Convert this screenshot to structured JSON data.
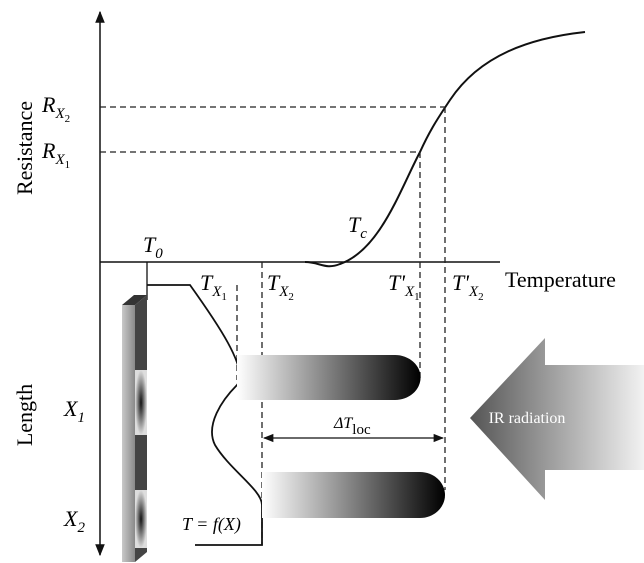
{
  "axes": {
    "resistance": "Resistance",
    "length": "Length",
    "temperature": "Temperature"
  },
  "labels": {
    "r_x2": {
      "base": "R",
      "sub": "X",
      "sub2": "2"
    },
    "r_x1": {
      "base": "R",
      "sub": "X",
      "sub2": "1"
    },
    "t_0": {
      "base": "T",
      "sub": "0"
    },
    "t_x1": {
      "base": "T",
      "sub": "X",
      "sub2": "1"
    },
    "t_x2": {
      "base": "T",
      "sub": "X",
      "sub2": "2"
    },
    "t_x1_prime": {
      "base": "T'",
      "sub": "X",
      "sub2": "1"
    },
    "t_x2_prime": {
      "base": "T'",
      "sub": "X",
      "sub2": "2"
    },
    "t_c": {
      "base": "T",
      "sub": "c"
    },
    "x_1": {
      "base": "X",
      "sub": "1"
    },
    "x_2": {
      "base": "X",
      "sub": "2"
    },
    "delta_t_loc": {
      "base": "ΔT",
      "sub": "loc"
    }
  },
  "function_label": "T = f(X)",
  "ir_label": "IR radiation"
}
